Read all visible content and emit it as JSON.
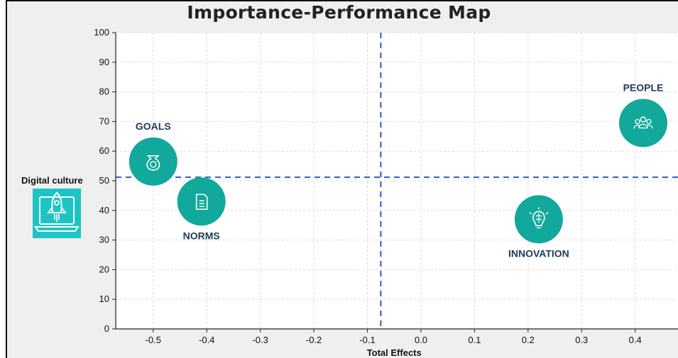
{
  "chart_data": {
    "type": "scatter",
    "title": "Importance-Performance Map",
    "xlabel": "Total Effects",
    "ylabel": "",
    "xlim": [
      -0.57,
      0.48
    ],
    "ylim": [
      0,
      100
    ],
    "x_ticks": [
      "-0.5",
      "-0.4",
      "-0.3",
      "-0.2",
      "-0.1",
      "0.0",
      "0.1",
      "0.2",
      "0.3",
      "0.4"
    ],
    "y_ticks": [
      "0",
      "10",
      "20",
      "30",
      "40",
      "50",
      "60",
      "70",
      "80",
      "90",
      "100"
    ],
    "grid": true,
    "reference_lines": {
      "x": -0.075,
      "y": 51.2
    },
    "target_construct": {
      "label": "Digital culture",
      "icon": "rocket-laptop-icon"
    },
    "points": [
      {
        "label": "GOALS",
        "x": -0.5,
        "y": 56.5,
        "icon": "money-bag-icon",
        "label_position": "above"
      },
      {
        "label": "NORMS",
        "x": -0.41,
        "y": 43,
        "icon": "document-icon",
        "label_position": "below"
      },
      {
        "label": "INNOVATION",
        "x": 0.22,
        "y": 37,
        "icon": "lightbulb-brain-icon",
        "label_position": "below"
      },
      {
        "label": "PEOPLE",
        "x": 0.415,
        "y": 69.5,
        "icon": "people-group-icon",
        "label_position": "above"
      }
    ],
    "colors": {
      "marker": "#12a89b",
      "reference_line": "#4169c9",
      "construct_icon": "#1ec4c4"
    }
  }
}
